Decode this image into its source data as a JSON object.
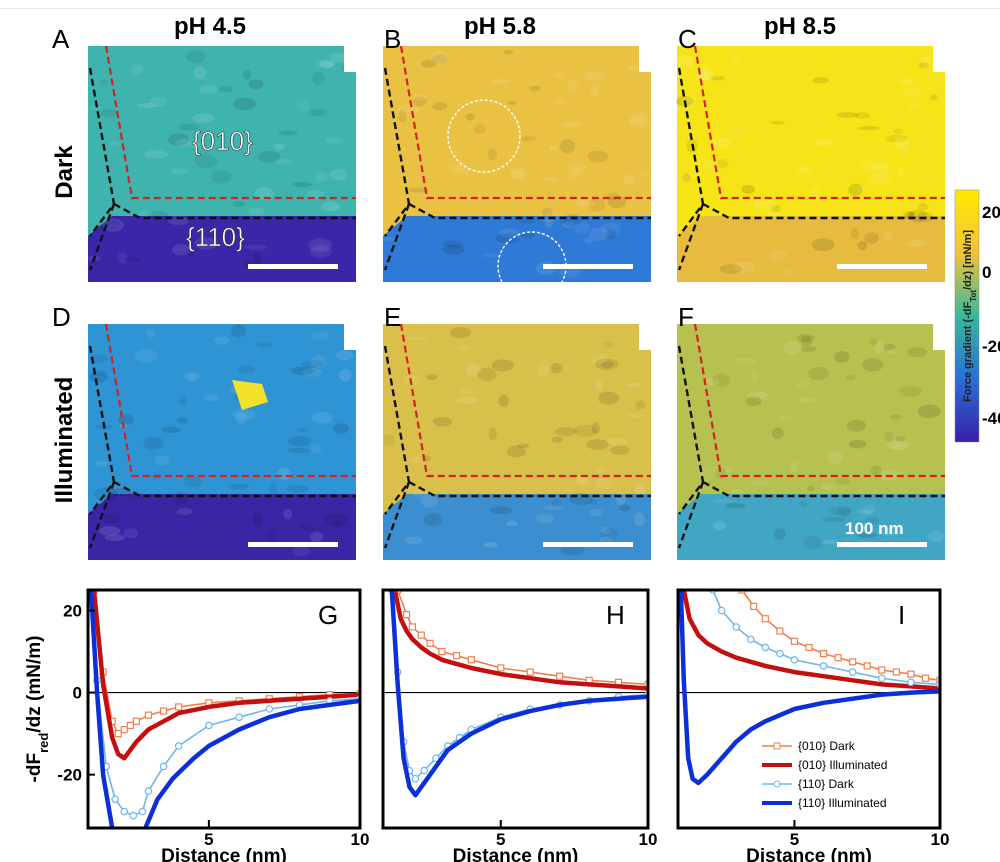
{
  "panel_letters": [
    "A",
    "B",
    "C",
    "D",
    "E",
    "F"
  ],
  "column_headers": [
    "pH 4.5",
    "pH 5.8",
    "pH 8.5"
  ],
  "row_labels": [
    "Dark",
    "Illuminated"
  ],
  "facet_labels": {
    "top": "{010}",
    "bottom": "{110}"
  },
  "scale_bar_label": "100 nm",
  "colorbar": {
    "label_main": "Force gradient (-dF",
    "label_sub": "Tot",
    "label_end": "/dz) [mN/m]",
    "ticks": [
      "20",
      "0",
      "-20",
      "-40"
    ],
    "colors": [
      "#ffea00",
      "#f2c33a",
      "#38b99a",
      "#2a6fd8",
      "#3a1fa8"
    ]
  },
  "map_colors": {
    "dark_ph45": {
      "upper": "#3fb3ae",
      "lower": "#3927a8"
    },
    "dark_ph58": {
      "upper": "#e9c244",
      "lower": "#2f7ad6"
    },
    "dark_ph85": {
      "upper": "#f6e418",
      "lower": "#e6bb3f"
    },
    "ill_ph45": {
      "upper": "#2f94d4",
      "lower": "#3a25a5"
    },
    "ill_ph58": {
      "upper": "#d9c04a",
      "lower": "#3b8fd0"
    },
    "ill_ph85": {
      "upper": "#b7c14f",
      "lower": "#41a6c4"
    }
  },
  "boundary_colors": {
    "red": "#d42222",
    "black": "#111111"
  },
  "chart_data": [
    {
      "type": "line",
      "panel": "G",
      "xlabel": "Distance (nm)",
      "ylabel_main": "-dF",
      "ylabel_sub": "red",
      "ylabel_end": "/dz (mN/m)",
      "xlim": [
        1,
        10
      ],
      "ylim": [
        -33,
        25
      ],
      "xticks": [
        5,
        10
      ],
      "yticks": [
        20,
        0,
        -20
      ],
      "series": [
        {
          "name": "{010} Dark",
          "color": "#f0804f",
          "marker": "square",
          "x": [
            1.2,
            1.5,
            1.8,
            2.0,
            2.2,
            2.4,
            2.6,
            3.0,
            3.5,
            4,
            5,
            6,
            7,
            8,
            9,
            10
          ],
          "y": [
            25,
            5,
            -7,
            -10,
            -9,
            -8,
            -7,
            -5.5,
            -4.5,
            -3.5,
            -2.5,
            -2,
            -1.5,
            -1,
            -0.5,
            -0.3
          ]
        },
        {
          "name": "{010} Illuminated",
          "color": "#c40f0f",
          "marker": "none",
          "x": [
            1.2,
            1.5,
            1.8,
            2.0,
            2.2,
            2.4,
            2.6,
            3.0,
            3.5,
            4,
            5,
            6,
            7,
            8,
            9,
            10
          ],
          "y": [
            25,
            2,
            -11,
            -15,
            -16,
            -14,
            -12,
            -9,
            -7,
            -5,
            -3.5,
            -2.5,
            -2,
            -1.5,
            -1,
            -0.5
          ]
        },
        {
          "name": "{110} Dark",
          "color": "#6fb6ee",
          "marker": "circle",
          "x": [
            1.1,
            1.3,
            1.6,
            1.9,
            2.2,
            2.5,
            2.8,
            3.0,
            3.5,
            4,
            5,
            6,
            7,
            8,
            9,
            10
          ],
          "y": [
            25,
            3,
            -18,
            -26,
            -29,
            -30,
            -29,
            -24,
            -18,
            -13,
            -8,
            -6,
            -4,
            -3,
            -2,
            -1.5
          ]
        },
        {
          "name": "{110} Illuminated",
          "color": "#0b2fd8",
          "marker": "none",
          "x": [
            1.1,
            1.3,
            1.5,
            1.8,
            2.2,
            2.6,
            2.9,
            3.3,
            3.8,
            4.5,
            5,
            6,
            7,
            8,
            9,
            10
          ],
          "y": [
            25,
            0,
            -20,
            -33,
            -36,
            -35,
            -33,
            -26,
            -21,
            -16,
            -13,
            -9,
            -6,
            -4,
            -3,
            -2
          ]
        }
      ]
    },
    {
      "type": "line",
      "panel": "H",
      "xlabel": "Distance (nm)",
      "xlim": [
        1,
        10
      ],
      "ylim": [
        -33,
        25
      ],
      "xticks": [
        5,
        10
      ],
      "yticks": [
        20,
        0,
        -20
      ],
      "series": [
        {
          "name": "{010} Dark",
          "color": "#f0804f",
          "marker": "square",
          "x": [
            1.5,
            1.8,
            2.0,
            2.3,
            2.6,
            3.0,
            3.5,
            4,
            5,
            6,
            7,
            8,
            9,
            10
          ],
          "y": [
            25,
            19,
            16,
            14,
            12,
            10,
            9,
            8,
            6,
            5,
            4,
            3,
            2.5,
            2
          ]
        },
        {
          "name": "{010} Illuminated",
          "color": "#c40f0f",
          "marker": "none",
          "x": [
            1.4,
            1.6,
            1.8,
            2.0,
            2.3,
            2.6,
            3.0,
            3.5,
            4,
            5,
            6,
            7,
            8,
            9,
            10
          ],
          "y": [
            25,
            18,
            15,
            13,
            11,
            9.5,
            8,
            7,
            6,
            4.5,
            3.5,
            2.5,
            2,
            1.5,
            1
          ]
        },
        {
          "name": "{110} Dark",
          "color": "#6fb6ee",
          "marker": "circle",
          "x": [
            1.3,
            1.5,
            1.7,
            1.9,
            2.1,
            2.4,
            2.8,
            3.2,
            3.6,
            4,
            5,
            6,
            7,
            8,
            9,
            10
          ],
          "y": [
            25,
            5,
            -12,
            -19,
            -21,
            -19,
            -16,
            -13,
            -11,
            -9,
            -6,
            -4,
            -3,
            -2,
            -1,
            -0.5
          ]
        },
        {
          "name": "{110} Illuminated",
          "color": "#0b2fd8",
          "marker": "none",
          "x": [
            1.3,
            1.5,
            1.7,
            1.9,
            2.1,
            2.4,
            2.8,
            3.2,
            3.6,
            4,
            5,
            6,
            7,
            8,
            9,
            10
          ],
          "y": [
            25,
            2,
            -16,
            -23,
            -25,
            -22,
            -18,
            -14,
            -12,
            -10,
            -6.5,
            -4.5,
            -3,
            -2,
            -1.5,
            -1
          ]
        }
      ]
    },
    {
      "type": "line",
      "panel": "I",
      "xlabel": "Distance (nm)",
      "xlim": [
        1,
        10
      ],
      "ylim": [
        -33,
        25
      ],
      "xticks": [
        5,
        10
      ],
      "yticks": [
        20,
        0,
        -20
      ],
      "legend": "lower-right",
      "series": [
        {
          "name": "{010} Dark",
          "color": "#f0804f",
          "marker": "square",
          "x": [
            3.2,
            3.6,
            4,
            4.5,
            5,
            5.5,
            6,
            6.5,
            7,
            7.5,
            8,
            8.5,
            9,
            9.5,
            10
          ],
          "y": [
            25,
            21,
            18,
            15,
            12.5,
            11,
            9.5,
            8.5,
            7.5,
            6.5,
            5.5,
            5,
            4.5,
            3.5,
            3
          ]
        },
        {
          "name": "{010} Illuminated",
          "color": "#c40f0f",
          "marker": "none",
          "x": [
            1.2,
            1.4,
            1.7,
            2.0,
            2.5,
            3.0,
            3.5,
            4,
            5,
            6,
            7,
            8,
            9,
            10
          ],
          "y": [
            25,
            18,
            14,
            12,
            10,
            8.5,
            7.5,
            6.5,
            5,
            4,
            3,
            2,
            1.5,
            1
          ]
        },
        {
          "name": "{110} Dark",
          "color": "#6fb6ee",
          "marker": "circle",
          "x": [
            2.2,
            2.5,
            3.0,
            3.5,
            4,
            4.5,
            5,
            6,
            7,
            8,
            9,
            10
          ],
          "y": [
            25,
            20,
            16,
            13,
            11,
            9.5,
            8,
            6.5,
            5,
            3.5,
            2.5,
            2
          ]
        },
        {
          "name": "{110} Illuminated",
          "color": "#0b2fd8",
          "marker": "none",
          "x": [
            1.1,
            1.2,
            1.35,
            1.5,
            1.7,
            2.0,
            2.5,
            3.0,
            3.5,
            4,
            5,
            6,
            7,
            8,
            9,
            10
          ],
          "y": [
            25,
            3,
            -16,
            -21,
            -22,
            -20,
            -16,
            -12,
            -9,
            -7,
            -4,
            -2.5,
            -1.5,
            -0.5,
            0,
            0.3
          ]
        }
      ]
    }
  ]
}
